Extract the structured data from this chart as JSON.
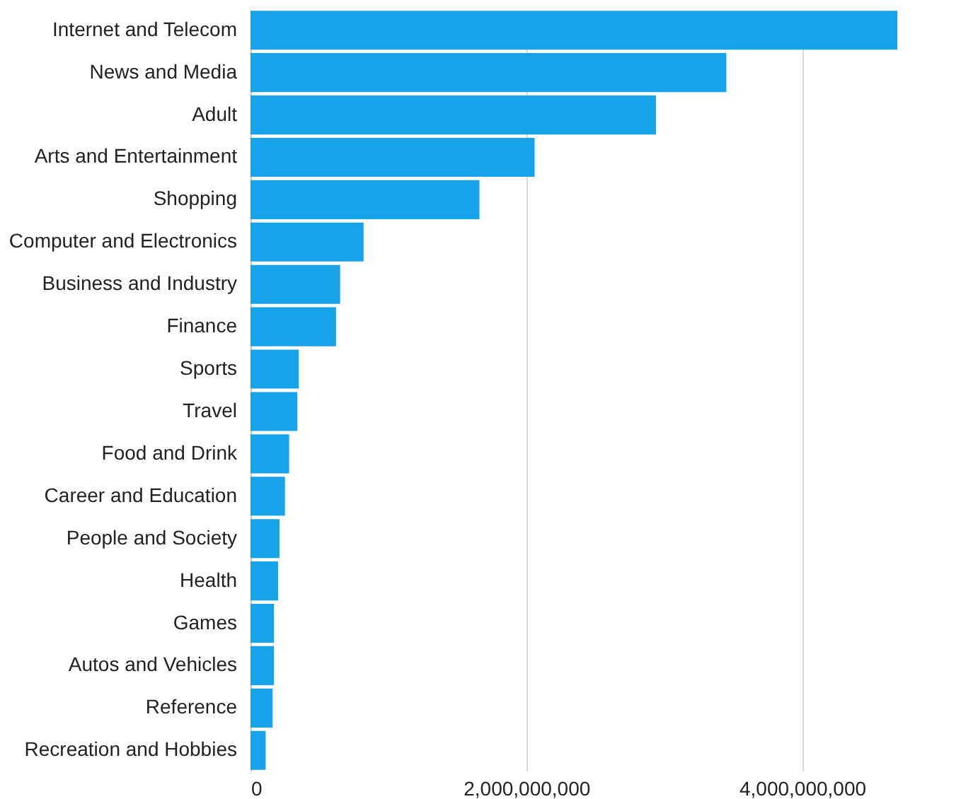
{
  "chart_data": {
    "type": "bar",
    "orientation": "horizontal",
    "categories": [
      "Internet and Telecom",
      "News and Media",
      "Adult",
      "Arts and Entertainment",
      "Shopping",
      "Computer and Electronics",
      "Business and Industry",
      "Finance",
      "Sports",
      "Travel",
      "Food and Drink",
      "Career and Education",
      "People and Society",
      "Health",
      "Games",
      "Autos and Vehicles",
      "Reference",
      "Recreation and Hobbies"
    ],
    "values": [
      4690000000,
      3450000000,
      2940000000,
      2060000000,
      1660000000,
      820000000,
      650000000,
      620000000,
      350000000,
      340000000,
      280000000,
      250000000,
      210000000,
      200000000,
      170000000,
      170000000,
      160000000,
      110000000
    ],
    "color": "#16a3e9",
    "xlim": [
      0,
      4690000000
    ],
    "xticks": [
      0,
      {
        "value": 2000000000,
        "label": "2,000,000,000"
      },
      {
        "value": 4000000000,
        "label": "4,000,000,000"
      }
    ],
    "grid": "x"
  }
}
